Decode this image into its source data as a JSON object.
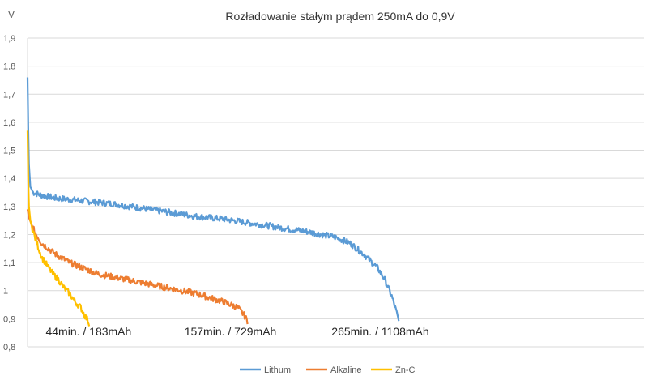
{
  "chart_data": {
    "type": "line",
    "title": "Rozładowanie stałym prądem 250mA  do 0,9V",
    "ylabel": "V",
    "xlabel": "",
    "x_unit": "min",
    "ylim": [
      0.8,
      1.9
    ],
    "xlim": [
      0,
      440
    ],
    "y_ticks": [
      "0,8",
      "0,9",
      "1",
      "1,1",
      "1,2",
      "1,3",
      "1,4",
      "1,5",
      "1,6",
      "1,7",
      "1,8",
      "1,9"
    ],
    "grid": true,
    "legend_position": "bottom",
    "colors": {
      "Lithum": "#5b9bd5",
      "Alkaline": "#ed7d31",
      "Zn-C": "#ffc000"
    },
    "series": [
      {
        "name": "Lithum",
        "x": [
          0,
          0.5,
          1,
          2,
          4,
          10,
          20,
          40,
          60,
          80,
          100,
          120,
          140,
          160,
          180,
          200,
          220,
          230,
          240,
          250,
          255,
          260,
          263,
          265
        ],
        "y": [
          1.76,
          1.58,
          1.45,
          1.37,
          1.35,
          1.34,
          1.33,
          1.32,
          1.31,
          1.295,
          1.28,
          1.265,
          1.255,
          1.24,
          1.225,
          1.21,
          1.19,
          1.17,
          1.13,
          1.08,
          1.04,
          0.98,
          0.93,
          0.89
        ]
      },
      {
        "name": "Alkaline",
        "x": [
          0,
          1,
          5,
          10,
          20,
          30,
          40,
          50,
          60,
          80,
          100,
          120,
          140,
          150,
          155,
          157
        ],
        "y": [
          1.29,
          1.26,
          1.21,
          1.17,
          1.13,
          1.1,
          1.08,
          1.06,
          1.05,
          1.03,
          1.01,
          0.99,
          0.96,
          0.94,
          0.91,
          0.89
        ]
      },
      {
        "name": "Zn-C",
        "x": [
          0,
          0.3,
          0.7,
          1,
          2,
          4,
          6,
          8,
          10,
          14,
          18,
          22,
          26,
          30,
          34,
          38,
          41,
          43,
          44
        ],
        "y": [
          1.57,
          1.44,
          1.36,
          1.3,
          1.25,
          1.21,
          1.18,
          1.15,
          1.12,
          1.09,
          1.06,
          1.04,
          1.01,
          0.99,
          0.96,
          0.94,
          0.91,
          0.895,
          0.88
        ]
      }
    ],
    "annotations": [
      {
        "text": "44min. / 183mAh",
        "x": 13,
        "y": 0.84
      },
      {
        "text": "157min. / 729mAh",
        "x": 112,
        "y": 0.84
      },
      {
        "text": "265min. / 1108mAh",
        "x": 217,
        "y": 0.84
      }
    ]
  }
}
